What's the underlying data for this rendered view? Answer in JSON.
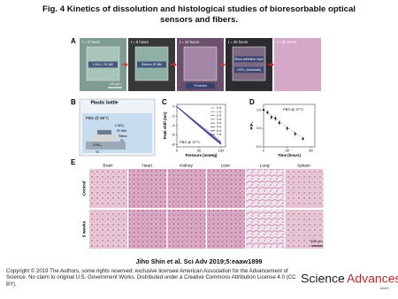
{
  "title": "Fig. 4 Kinetics of dissolution and histological studies of bioresorbable optical sensors and fibers.",
  "panel_a": {
    "label": "A",
    "frames": [
      {
        "time": "t = 0 hours",
        "notes": [
          "t-SiO₂ / Si NM"
        ]
      },
      {
        "time": "t = 5 hours",
        "notes": [
          "Bottom Si NM"
        ]
      },
      {
        "time": "t = 10 hours",
        "notes": [
          "Si trench"
        ]
      },
      {
        "time": "t = 20 hours",
        "notes": [
          "Silica adhesion layer",
          "t-SiO₂ (substrate)"
        ]
      },
      {
        "time": "t = 65 hours",
        "notes": []
      }
    ],
    "scale_bar": "100 µm"
  },
  "panel_b": {
    "label": "B",
    "texts": [
      "Plastic bottle",
      "PBS @ 95°C",
      "t-SiO₂",
      "Si NM",
      "Silica",
      "Si",
      "t-SiO₂",
      "Si"
    ]
  },
  "panel_c": {
    "label": "C",
    "note": "PBS @ 37°C",
    "x_label": "Pressure (mmHg)",
    "y_label": "Peak shift (nm)",
    "xlim": [
      0,
      110
    ],
    "ylim": [
      -8.5,
      0.5
    ],
    "xticks": [
      0,
      50,
      100
    ],
    "yticks": [
      0,
      -2,
      -4,
      -6,
      -8
    ],
    "x": [
      0,
      20,
      40,
      60,
      80,
      100
    ],
    "series": [
      {
        "name": "0 d",
        "color": "#9a9a9a",
        "values": [
          0,
          -1.4,
          -2.9,
          -4.4,
          -5.9,
          -7.4
        ]
      },
      {
        "name": "1 d",
        "color": "#8d8aa8",
        "values": [
          0,
          -1.45,
          -3.0,
          -4.5,
          -6.0,
          -7.5
        ]
      },
      {
        "name": "2 d",
        "color": "#7f78b0",
        "values": [
          0,
          -1.5,
          -3.0,
          -4.6,
          -6.1,
          -7.6
        ]
      },
      {
        "name": "3 d",
        "color": "#7166b4",
        "values": [
          0,
          -1.5,
          -3.1,
          -4.6,
          -6.2,
          -7.7
        ]
      },
      {
        "name": "4 d",
        "color": "#6454b4",
        "values": [
          0,
          -1.55,
          -3.1,
          -4.7,
          -6.2,
          -7.8
        ]
      },
      {
        "name": "5 d",
        "color": "#5744b0",
        "values": [
          0,
          -1.6,
          -3.2,
          -4.7,
          -6.3,
          -7.8
        ]
      },
      {
        "name": "6 d",
        "color": "#4a34a8",
        "values": [
          0,
          -1.6,
          -3.2,
          -4.8,
          -6.4,
          -7.9
        ]
      },
      {
        "name": "7 d",
        "color": "#3c2698",
        "values": [
          0,
          -1.65,
          -3.3,
          -4.9,
          -6.5,
          -8.0
        ]
      }
    ]
  },
  "panel_d": {
    "label": "D",
    "note": "PBS @ 37°C",
    "x_label": "Time (hours)",
    "y_label": "P/P₀",
    "xlim": [
      0,
      65
    ],
    "ylim": [
      0,
      1.15
    ],
    "xticks": [
      0,
      30,
      60
    ],
    "yticks": [
      {
        "value": 0,
        "label": "0.0"
      },
      {
        "value": 0.5,
        "label": "0.5"
      },
      {
        "value": 1,
        "label": "1.0"
      }
    ],
    "x": [
      0,
      5,
      10,
      15,
      20,
      30,
      40,
      50
    ],
    "values": [
      1,
      0.93,
      0.8,
      0.77,
      0.65,
      0.5,
      0.35,
      0.22
    ],
    "errors": [
      0.03,
      0.06,
      0.07,
      0.07,
      0.06,
      0.06,
      0.06,
      0.05
    ],
    "color": "#222222"
  },
  "panel_e": {
    "label": "E",
    "columns": [
      "Brain",
      "Heart",
      "Kidney",
      "Liver",
      "Lung",
      "Spleen"
    ],
    "rows": [
      "Control",
      "5 weeks"
    ],
    "scale_bar": "400 µm"
  },
  "citation": "Jiho Shin et al. Sci Adv 2019;5:eaaw1899",
  "copyright": "Copyright © 2019 The Authors, some rights reserved; exclusive licensee American Association for the Advancement of Science. No claim to original U.S. Government Works. Distributed under a Creative Commons Attribution License 4.0 (CC BY).",
  "logo": {
    "science": "Science",
    "advances": "Advances",
    "sub": "AAAS"
  }
}
